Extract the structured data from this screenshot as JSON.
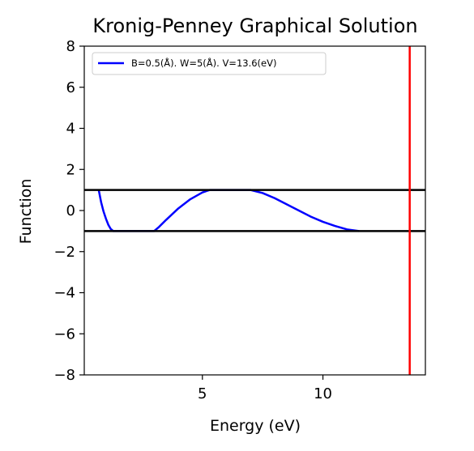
{
  "chart_data": {
    "type": "line",
    "title": "Kronig-Penney Graphical Solution",
    "xlabel": "Energy (eV)",
    "ylabel": "Function",
    "xlim": [
      0.1,
      14.25
    ],
    "ylim": [
      -8,
      8
    ],
    "xticks": [
      5,
      10
    ],
    "xtick_labels": [
      "5",
      "10"
    ],
    "yticks": [
      -8,
      -6,
      -4,
      -2,
      0,
      2,
      4,
      6,
      8
    ],
    "ytick_labels": [
      "−8",
      "−6",
      "−4",
      "−2",
      "0",
      "2",
      "4",
      "6",
      "8"
    ],
    "grid": false,
    "legend_position": "top-left",
    "series": [
      {
        "name": "B=0.5(Å). W=5(Å). V=13.6(eV)",
        "color": "#0000ff",
        "x": [
          0.7,
          0.8,
          0.9,
          1.0,
          1.1,
          1.2,
          1.3,
          3.0,
          3.2,
          3.5,
          4.0,
          4.5,
          5.0,
          5.3,
          5.6,
          7.0,
          7.5,
          8.0,
          8.5,
          9.0,
          9.5,
          10.0,
          10.5,
          11.0,
          11.5
        ],
        "y": [
          1.0,
          0.4,
          -0.05,
          -0.4,
          -0.7,
          -0.9,
          -1.0,
          -1.0,
          -0.8,
          -0.45,
          0.1,
          0.55,
          0.88,
          1.0,
          1.0,
          1.0,
          0.85,
          0.6,
          0.3,
          0.0,
          -0.3,
          -0.55,
          -0.75,
          -0.92,
          -1.0
        ]
      }
    ],
    "hlines": [
      {
        "y": 1,
        "color": "#000000"
      },
      {
        "y": -1,
        "color": "#000000"
      }
    ],
    "vlines": [
      {
        "x": 13.6,
        "color": "#ff0000"
      }
    ]
  }
}
